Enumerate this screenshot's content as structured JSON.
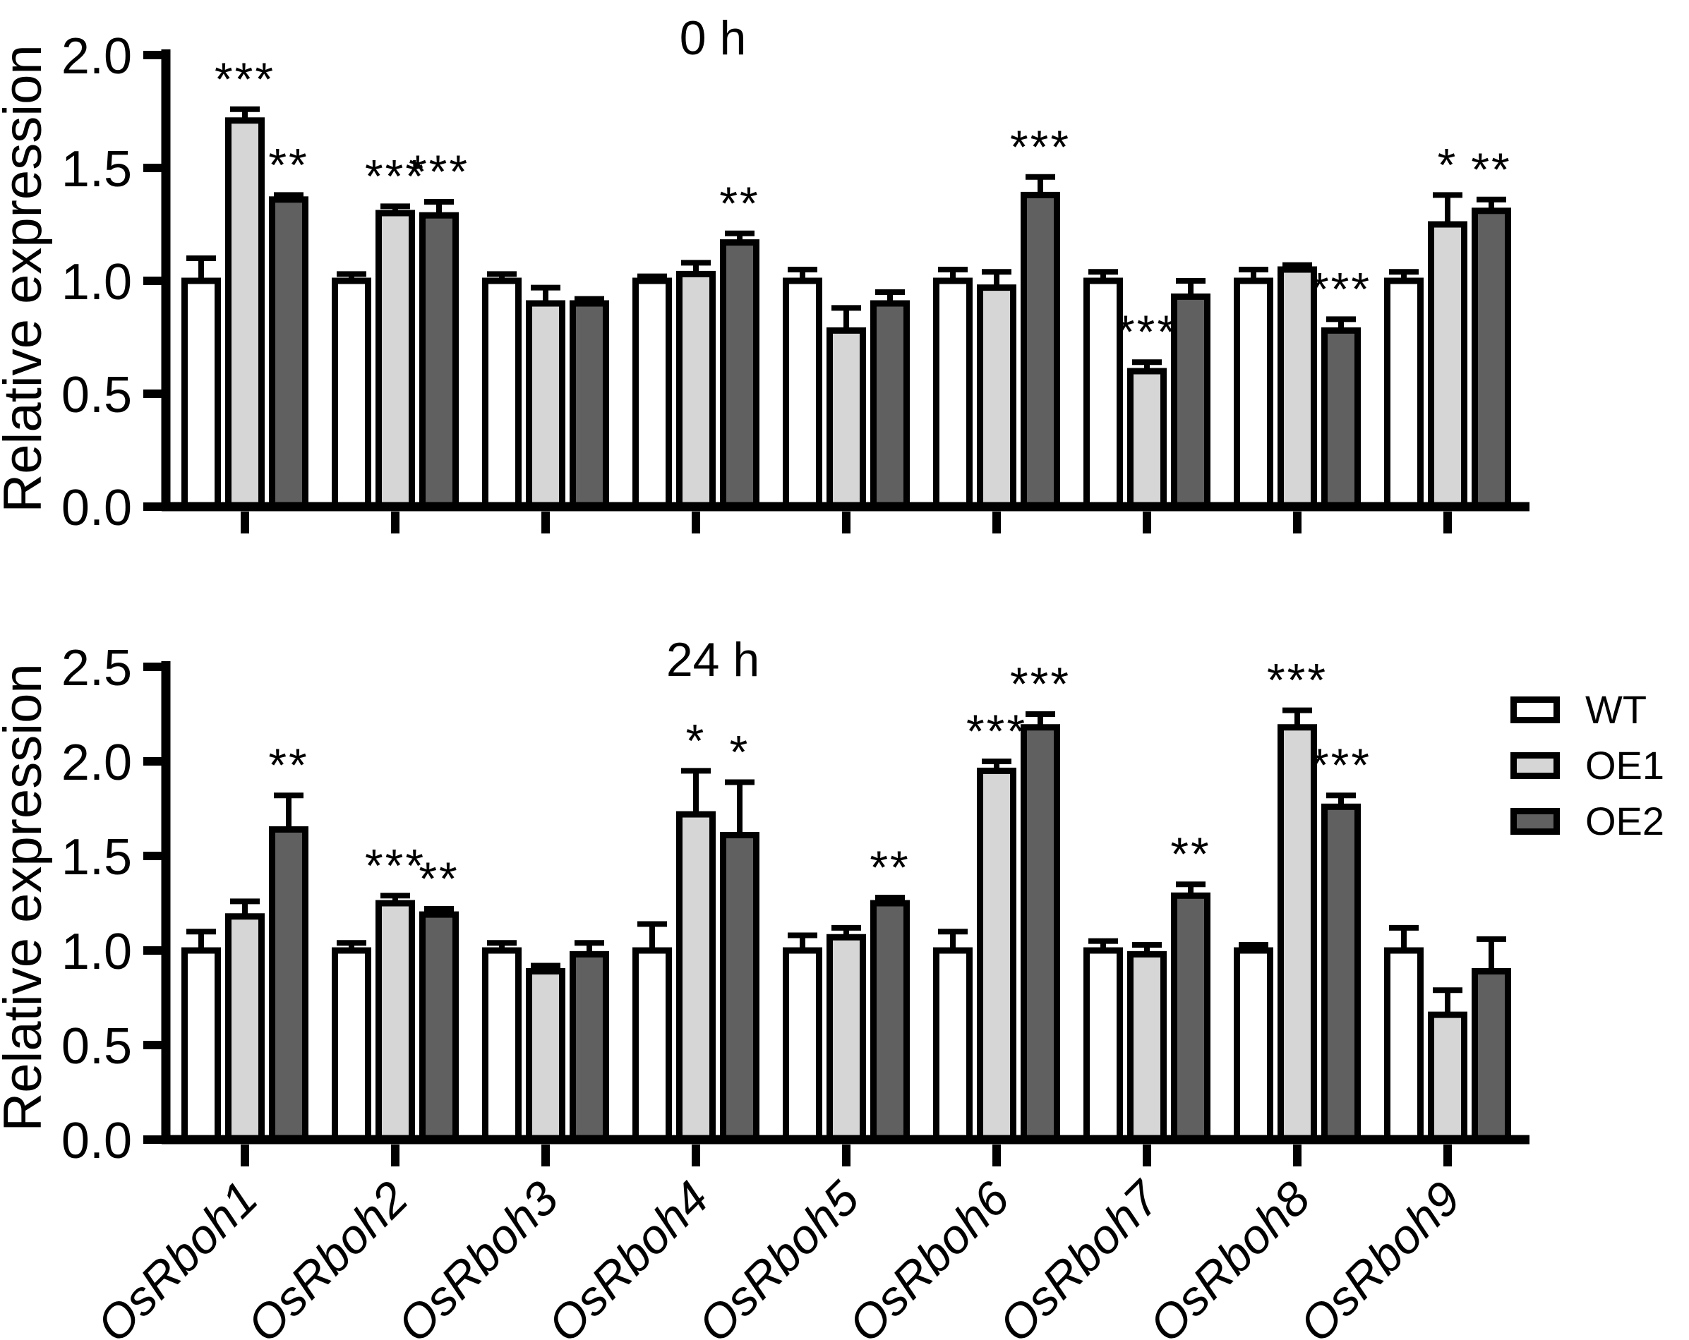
{
  "figure_ylabel": "Relative expression",
  "legend": {
    "items": [
      {
        "label": "WT",
        "color": "#ffffff"
      },
      {
        "label": "OE1",
        "color": "#d6d6d6"
      },
      {
        "label": "OE2",
        "color": "#606060"
      }
    ]
  },
  "colors": {
    "axis": "#000000",
    "bar_border": "#000000",
    "wt": "#ffffff",
    "oe1": "#d6d6d6",
    "oe2": "#606060"
  },
  "chart_data": [
    {
      "type": "bar",
      "title": "0 h",
      "ylabel": "Relative expression",
      "xlabel": "",
      "ylim": [
        0,
        2.0
      ],
      "ytick_labels": [
        "0.0",
        "0.5",
        "1.0",
        "1.5",
        "2.0"
      ],
      "grid": false,
      "legend_position": "none",
      "categories": [
        "OsRboh1",
        "OsRboh2",
        "OsRboh3",
        "OsRboh4",
        "OsRboh5",
        "OsRboh6",
        "OsRboh7",
        "OsRboh8",
        "OsRboh9"
      ],
      "show_x_labels": false,
      "series": [
        {
          "name": "WT",
          "values": [
            1.0,
            1.0,
            1.0,
            1.0,
            1.0,
            1.0,
            1.0,
            1.0,
            1.0
          ],
          "errors": [
            0.1,
            0.03,
            0.03,
            0.02,
            0.05,
            0.05,
            0.04,
            0.05,
            0.04
          ],
          "sig": [
            "",
            "",
            "",
            "",
            "",
            "",
            "",
            "",
            ""
          ]
        },
        {
          "name": "OE1",
          "values": [
            1.71,
            1.3,
            0.9,
            1.03,
            0.78,
            0.97,
            0.6,
            1.05,
            1.25
          ],
          "errors": [
            0.05,
            0.03,
            0.07,
            0.05,
            0.1,
            0.07,
            0.04,
            0.02,
            0.13
          ],
          "sig": [
            "***",
            "***",
            "",
            "",
            "",
            "",
            "***",
            "",
            "*"
          ]
        },
        {
          "name": "OE2",
          "values": [
            1.36,
            1.29,
            0.9,
            1.17,
            0.9,
            1.38,
            0.93,
            0.78,
            1.31
          ],
          "errors": [
            0.02,
            0.06,
            0.02,
            0.04,
            0.05,
            0.08,
            0.07,
            0.05,
            0.05
          ],
          "sig": [
            "**",
            "***",
            "",
            "**",
            "",
            "***",
            "",
            "***",
            "**"
          ]
        }
      ]
    },
    {
      "type": "bar",
      "title": "24 h",
      "ylabel": "Relative expression",
      "xlabel": "",
      "ylim": [
        0,
        2.5
      ],
      "ytick_labels": [
        "0.0",
        "0.5",
        "1.0",
        "1.5",
        "2.0",
        "2.5"
      ],
      "grid": false,
      "legend_position": "right",
      "categories": [
        "OsRboh1",
        "OsRboh2",
        "OsRboh3",
        "OsRboh4",
        "OsRboh5",
        "OsRboh6",
        "OsRboh7",
        "OsRboh8",
        "OsRboh9"
      ],
      "show_x_labels": true,
      "series": [
        {
          "name": "WT",
          "values": [
            1.0,
            1.0,
            1.0,
            1.0,
            1.0,
            1.0,
            1.0,
            1.0,
            1.0
          ],
          "errors": [
            0.1,
            0.04,
            0.04,
            0.14,
            0.08,
            0.1,
            0.05,
            0.03,
            0.12
          ],
          "sig": [
            "",
            "",
            "",
            "",
            "",
            "",
            "",
            "",
            ""
          ]
        },
        {
          "name": "OE1",
          "values": [
            1.18,
            1.25,
            0.89,
            1.72,
            1.07,
            1.95,
            0.98,
            2.18,
            0.66
          ],
          "errors": [
            0.08,
            0.04,
            0.03,
            0.23,
            0.05,
            0.05,
            0.05,
            0.09,
            0.13
          ],
          "sig": [
            "",
            "***",
            "",
            "*",
            "",
            "***",
            "",
            "***",
            ""
          ]
        },
        {
          "name": "OE2",
          "values": [
            1.64,
            1.19,
            0.98,
            1.61,
            1.25,
            2.18,
            1.29,
            1.76,
            0.89
          ],
          "errors": [
            0.18,
            0.03,
            0.06,
            0.28,
            0.03,
            0.07,
            0.06,
            0.06,
            0.17
          ],
          "sig": [
            "**",
            "**",
            "",
            "*",
            "**",
            "***",
            "**",
            "***",
            ""
          ]
        }
      ]
    }
  ]
}
